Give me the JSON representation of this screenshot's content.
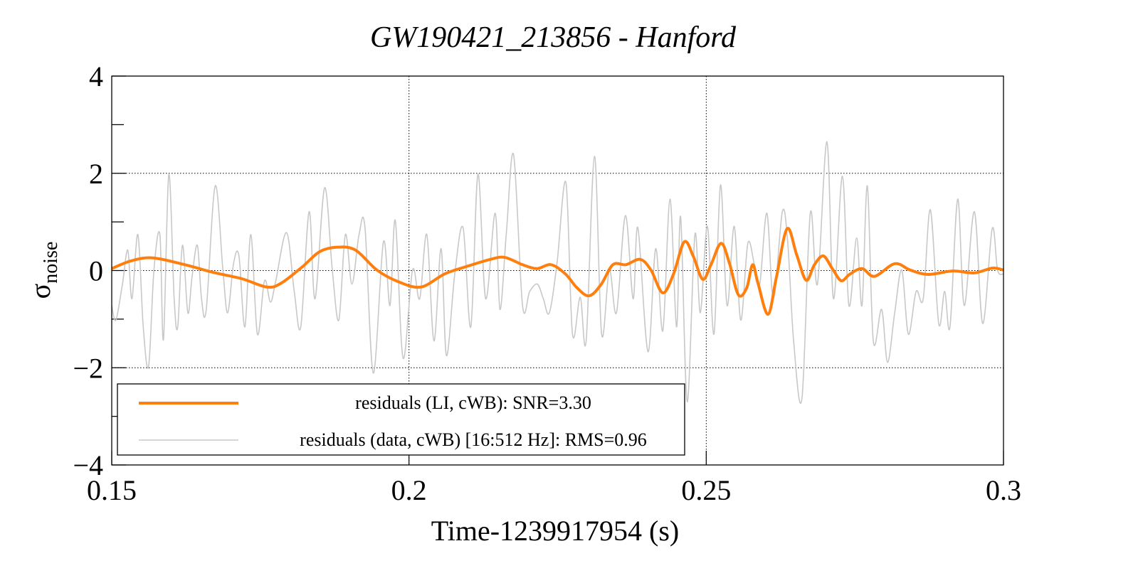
{
  "chart_data": {
    "type": "line",
    "title": "GW190421_213856 - Hanford",
    "xlabel": "Time-1239917954 (s)",
    "ylabel": {
      "symbol": "σ",
      "subscript": "noise"
    },
    "xlim": [
      0.15,
      0.3
    ],
    "xticks": [
      0.15,
      0.2,
      0.25,
      0.3
    ],
    "ylim": [
      -4,
      4
    ],
    "yticks": [
      {
        "value": -4,
        "label": "−4"
      },
      {
        "value": -2,
        "label": "−2"
      },
      0,
      2,
      4
    ],
    "yminorticks": [
      -3,
      -1,
      1,
      3
    ],
    "grid": true,
    "legend": "lower left",
    "series": [
      {
        "name": "residuals (data, cWB) [16:512 Hz]: RMS=0.96",
        "color": "#c8c8c8",
        "width": 1.6,
        "x": [
          0.15,
          0.1507,
          0.1518,
          0.1527,
          0.1534,
          0.1544,
          0.1553,
          0.1562,
          0.1571,
          0.1581,
          0.1587,
          0.1596,
          0.1605,
          0.1611,
          0.1619,
          0.1628,
          0.1635,
          0.1644,
          0.1651,
          0.1659,
          0.1674,
          0.1687,
          0.1695,
          0.1705,
          0.1714,
          0.1724,
          0.1734,
          0.1745,
          0.1757,
          0.1767,
          0.1776,
          0.1794,
          0.1807,
          0.1818,
          0.1832,
          0.1842,
          0.1858,
          0.1871,
          0.1882,
          0.1893,
          0.1904,
          0.1916,
          0.1926,
          0.194,
          0.1957,
          0.1968,
          0.1977,
          0.199,
          0.2006,
          0.2018,
          0.203,
          0.2042,
          0.2054,
          0.2063,
          0.2077,
          0.2091,
          0.2104,
          0.2116,
          0.2129,
          0.2145,
          0.2153,
          0.2164,
          0.2176,
          0.2191,
          0.2203,
          0.2216,
          0.2226,
          0.2236,
          0.2249,
          0.2264,
          0.2275,
          0.2288,
          0.2298,
          0.2312,
          0.2324,
          0.2337,
          0.2349,
          0.2364,
          0.2377,
          0.2385,
          0.2402,
          0.2415,
          0.2427,
          0.2439,
          0.245,
          0.2457,
          0.2468,
          0.2481,
          0.249,
          0.2502,
          0.2513,
          0.2524,
          0.2535,
          0.2547,
          0.2558,
          0.257,
          0.2581,
          0.259,
          0.2602,
          0.2613,
          0.2628,
          0.2637,
          0.2647,
          0.2661,
          0.2675,
          0.2687,
          0.2703,
          0.2714,
          0.2729,
          0.274,
          0.2753,
          0.2762,
          0.2771,
          0.2781,
          0.2795,
          0.2805,
          0.2817,
          0.2829,
          0.284,
          0.2853,
          0.2865,
          0.2877,
          0.2891,
          0.2901,
          0.291,
          0.2923,
          0.2934,
          0.2951,
          0.2965,
          0.2981,
          0.299,
          0.3
        ],
        "values": [
          -0.72,
          -1.02,
          -0.28,
          0.42,
          -0.58,
          0.74,
          -1.16,
          -1.97,
          0.01,
          0.74,
          -1.42,
          1.98,
          -0.58,
          -1.16,
          0.52,
          -0.87,
          -0.14,
          0.52,
          -0.58,
          -0.8,
          1.74,
          0.01,
          -0.87,
          0.15,
          0.3,
          -1.16,
          0.74,
          -1.31,
          -0.21,
          -0.65,
          -0.21,
          0.78,
          -0.43,
          -1.16,
          1.21,
          -0.58,
          1.7,
          0.01,
          -1.02,
          0.74,
          -0.28,
          0.74,
          0.88,
          -2.11,
          0.59,
          -0.72,
          1.03,
          -1.8,
          0.01,
          -0.58,
          0.74,
          -1.45,
          0.45,
          -1.75,
          -0.07,
          0.88,
          -1.16,
          1.98,
          -0.58,
          1.18,
          -0.8,
          0.81,
          2.38,
          -0.72,
          -0.43,
          -0.28,
          -0.58,
          -0.87,
          0.15,
          1.81,
          -1.31,
          -0.55,
          -1.45,
          2.35,
          -1.31,
          0.01,
          -0.87,
          1.13,
          -0.58,
          0.88,
          -1.67,
          0.45,
          -1.24,
          1.47,
          -1.16,
          1.1,
          -2.7,
          0.74,
          -0.87,
          0.91,
          -1.31,
          1.76,
          -0.72,
          0.91,
          -1.02,
          0.56,
          0.12,
          -0.28,
          1.18,
          -0.58,
          1.21,
          0.59,
          -1.45,
          -2.63,
          1.18,
          -0.28,
          2.65,
          -0.58,
          1.94,
          -0.72,
          0.67,
          -0.72,
          1.74,
          -1.45,
          -0.8,
          -1.89,
          -0.87,
          0.01,
          -1.31,
          -0.43,
          -0.58,
          1.25,
          -1.09,
          -0.43,
          -1.16,
          1.47,
          -0.72,
          1.21,
          -1.09,
          0.86,
          0.01,
          -0.07
        ]
      },
      {
        "name": "residuals (LI, cWB): SNR=3.30",
        "color": "#ff7f0e",
        "width": 4,
        "x": [
          0.15,
          0.1533,
          0.1569,
          0.1623,
          0.1671,
          0.1719,
          0.1761,
          0.1785,
          0.1821,
          0.185,
          0.188,
          0.191,
          0.1946,
          0.1982,
          0.202,
          0.206,
          0.2096,
          0.2137,
          0.2161,
          0.2191,
          0.2215,
          0.2239,
          0.2263,
          0.2283,
          0.2303,
          0.2323,
          0.2343,
          0.2365,
          0.2389,
          0.2407,
          0.2427,
          0.2445,
          0.2463,
          0.2478,
          0.2494,
          0.2508,
          0.2525,
          0.2539,
          0.2554,
          0.2568,
          0.2578,
          0.2587,
          0.2604,
          0.2618,
          0.2636,
          0.2652,
          0.2668,
          0.2682,
          0.2697,
          0.2712,
          0.2727,
          0.2741,
          0.2762,
          0.2783,
          0.2817,
          0.2843,
          0.2873,
          0.2915,
          0.2951,
          0.2981,
          0.3
        ],
        "values": [
          0.04,
          0.2,
          0.26,
          0.12,
          -0.04,
          -0.17,
          -0.34,
          -0.26,
          0.08,
          0.39,
          0.48,
          0.42,
          0.01,
          -0.23,
          -0.34,
          -0.07,
          0.08,
          0.23,
          0.27,
          0.12,
          0.04,
          0.12,
          -0.07,
          -0.36,
          -0.52,
          -0.29,
          0.12,
          0.12,
          0.23,
          0.01,
          -0.46,
          -0.07,
          0.59,
          0.3,
          -0.18,
          0.12,
          0.56,
          0.15,
          -0.5,
          -0.36,
          0.12,
          -0.26,
          -0.9,
          -0.14,
          0.86,
          0.33,
          -0.2,
          0.12,
          0.3,
          0.04,
          -0.21,
          -0.08,
          0.04,
          -0.12,
          0.14,
          0.01,
          -0.08,
          -0.01,
          -0.05,
          0.05,
          0.01
        ]
      }
    ]
  }
}
